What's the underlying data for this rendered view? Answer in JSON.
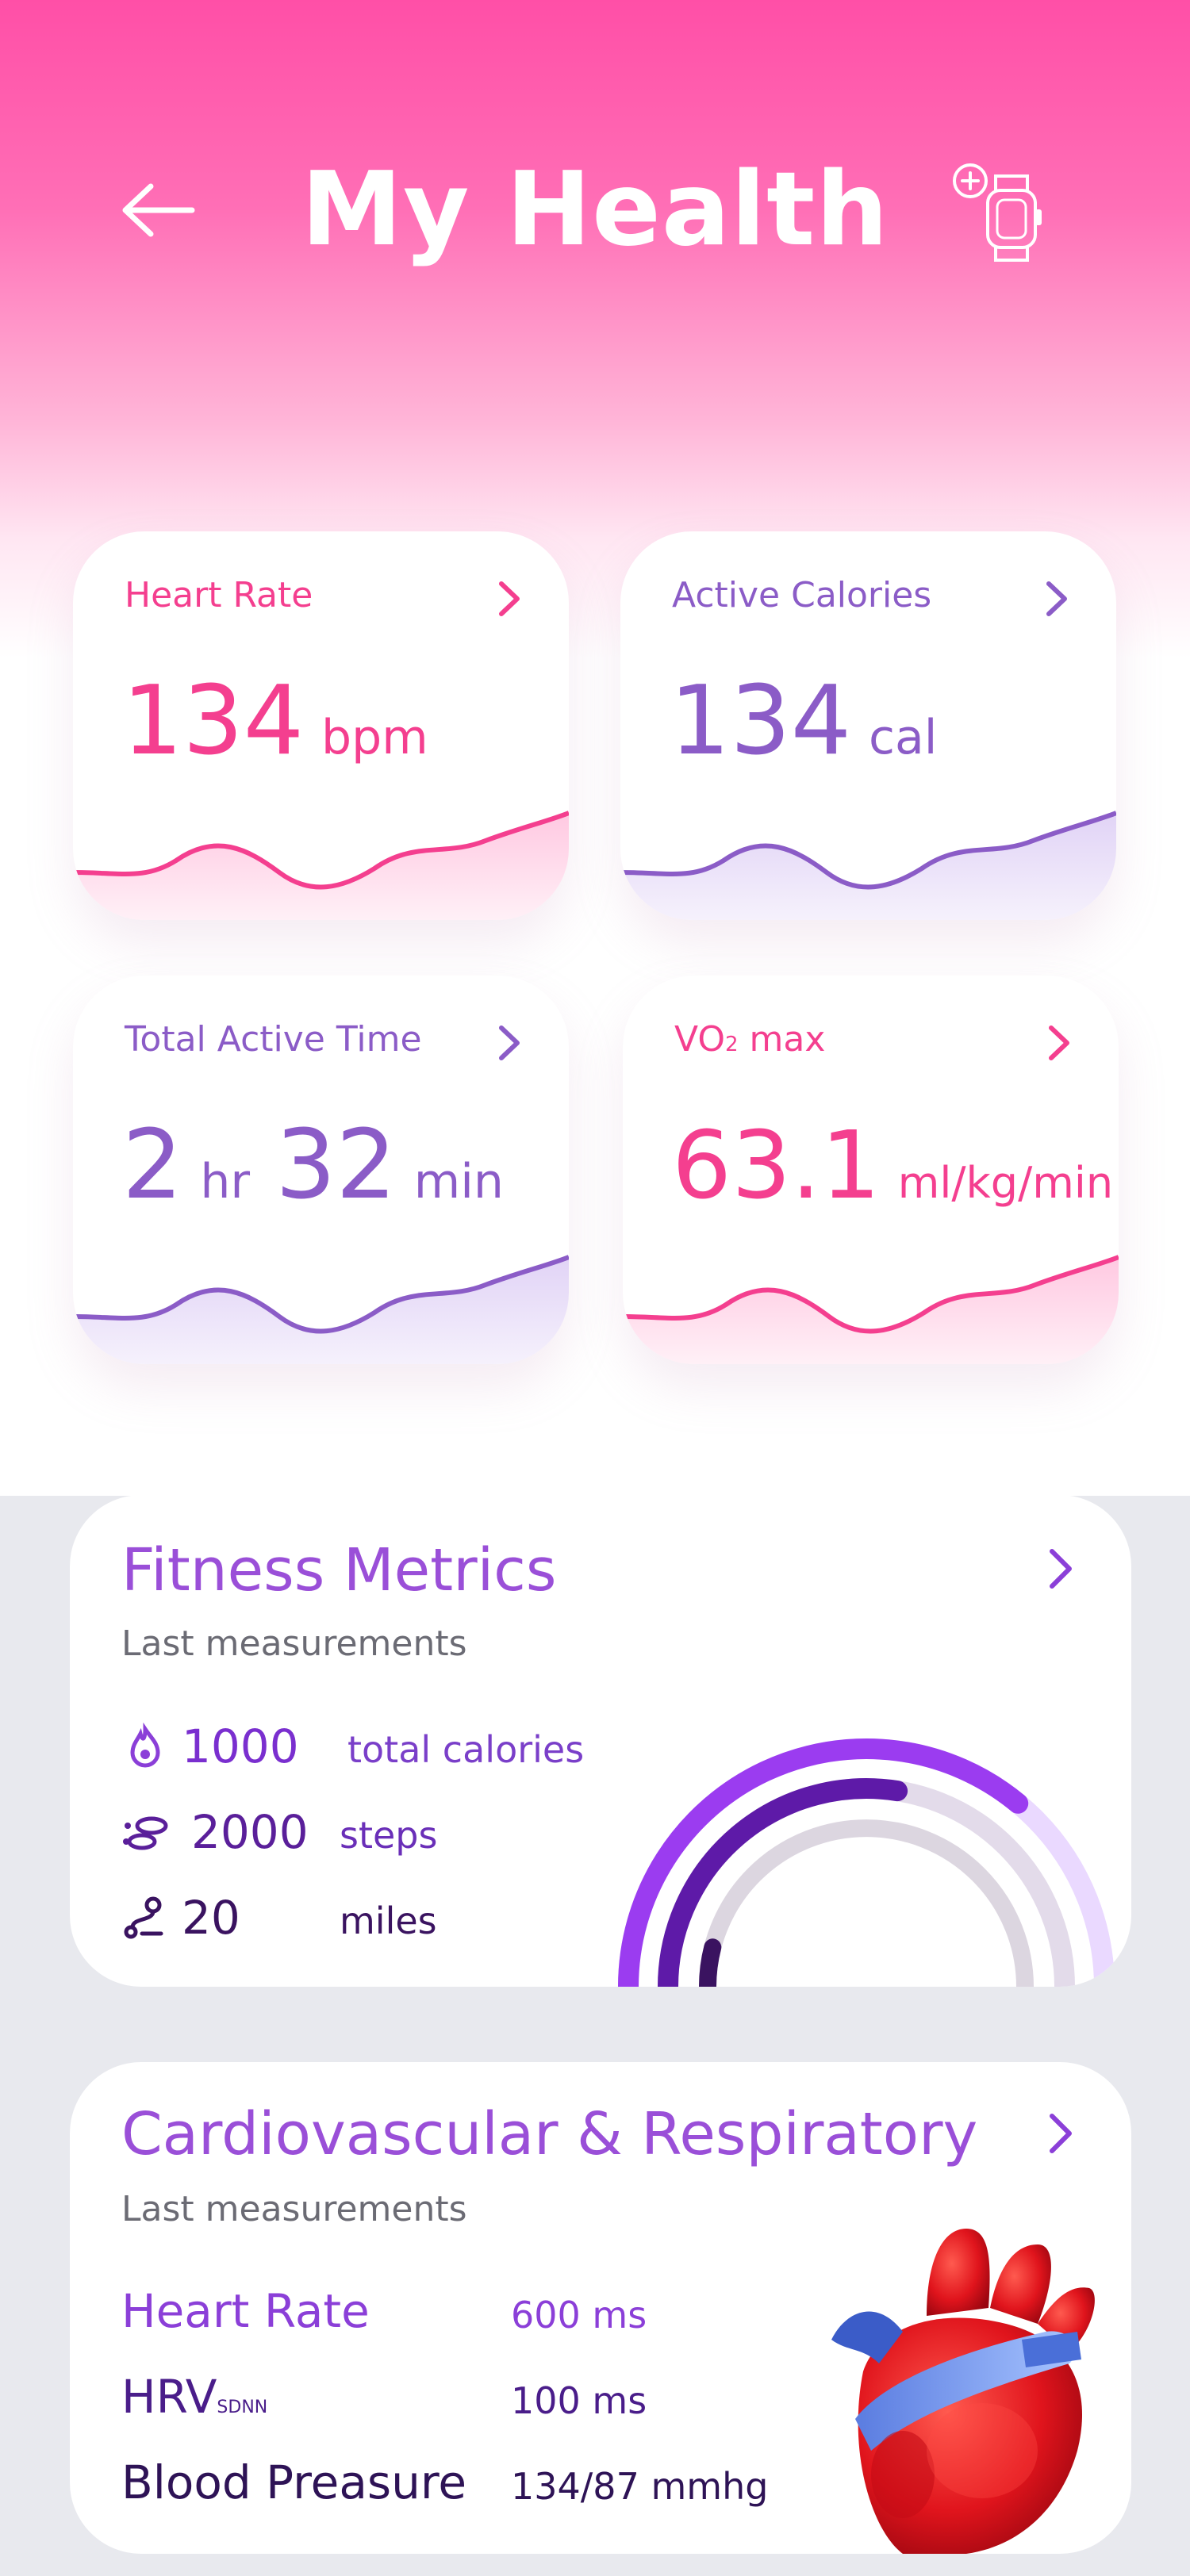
{
  "header": {
    "title": "My Health"
  },
  "cards": [
    {
      "label": "Heart Rate",
      "value": "134",
      "unit": "bpm"
    },
    {
      "label": "Active Calories",
      "value": "134",
      "unit": "cal"
    },
    {
      "label": "Total Active Time",
      "hours": "2",
      "hours_unit": "hr",
      "minutes": "32",
      "minutes_unit": "min"
    },
    {
      "label_main": "VO",
      "label_sub": "2",
      "label_tail": " max",
      "value": "63.1",
      "unit": "ml/kg/min"
    }
  ],
  "fitness": {
    "title": "Fitness Metrics",
    "subtitle": "Last measurements",
    "items": [
      {
        "icon": "flame-icon",
        "value": "1000",
        "label": "total calories"
      },
      {
        "icon": "footprints-icon",
        "value": "2000",
        "label": "steps"
      },
      {
        "icon": "route-icon",
        "value": "20",
        "label": "miles"
      }
    ],
    "rings": [
      {
        "color": "#9b3cf0",
        "track": "#ead9ff",
        "fraction": 0.72
      },
      {
        "color": "#5e1aa8",
        "track": "#e3dbea",
        "fraction": 0.55
      },
      {
        "color": "#3a1360",
        "track": "#dcd6e0",
        "fraction": 0.08
      }
    ]
  },
  "cardio": {
    "title": "Cardiovascular & Respiratory",
    "subtitle": "Last measurements",
    "rows": [
      {
        "label": "Heart Rate",
        "value": "600 ms"
      },
      {
        "label": "HRV",
        "label_sub": "SDNN",
        "value": "100 ms"
      },
      {
        "label": "Blood Preasure",
        "value": "134/87 mmhg"
      }
    ]
  },
  "colors": {
    "pink": "#f43f8f",
    "purple": "#8b5cc7",
    "header_bg": "#ff4fa7"
  }
}
